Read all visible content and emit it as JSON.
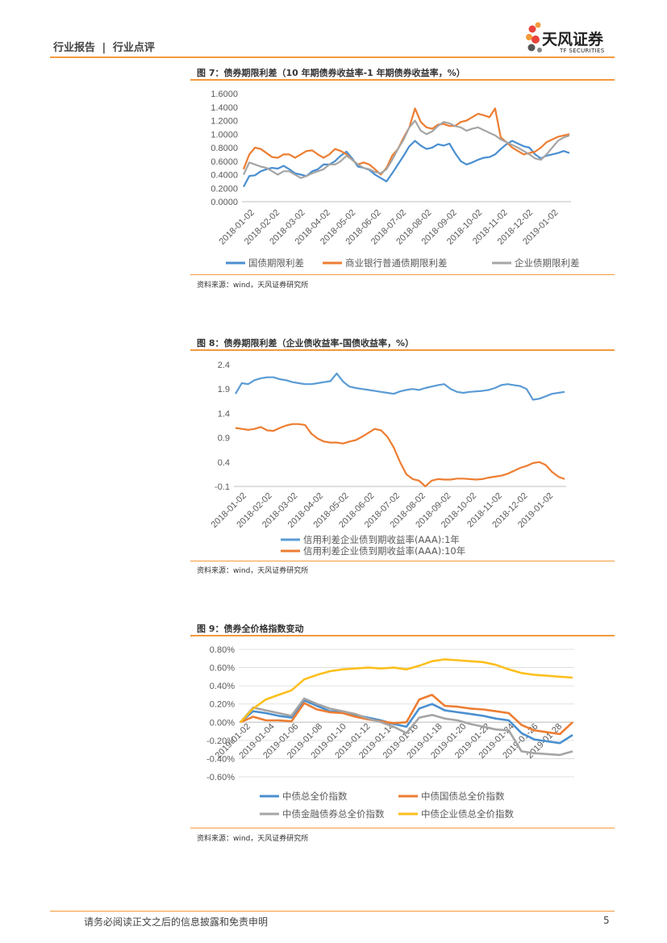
{
  "header": {
    "section": "行业报告",
    "sep": "|",
    "type": "行业点评"
  },
  "brand": {
    "cn": "天风证券",
    "en": "TF SECURITIES"
  },
  "figure7": {
    "caption": "图 7：债券期限利差（10 年期债券收益率-1 年期债券收益率，%）",
    "source": "资料来源：wind，天风证券研究所",
    "chart_data": {
      "type": "line",
      "title": "",
      "y_ticks": [
        "1.6000",
        "1.4000",
        "1.2000",
        "1.0000",
        "0.8000",
        "0.6000",
        "0.4000",
        "0.2000",
        "0.0000"
      ],
      "ylim": [
        0,
        1.6
      ],
      "x_ticks": [
        "2018-01-02",
        "2018-02-02",
        "2018-03-02",
        "2018-04-02",
        "2018-05-02",
        "2018-06-02",
        "2018-07-02",
        "2018-08-02",
        "2018-09-02",
        "2018-10-02",
        "2018-11-02",
        "2018-12-02",
        "2019-01-02"
      ],
      "series": [
        {
          "name": "国债期限利差",
          "color": "#4a8fd0",
          "values": [
            0.22,
            0.38,
            0.39,
            0.45,
            0.48,
            0.5,
            0.49,
            0.53,
            0.48,
            0.42,
            0.4,
            0.38,
            0.45,
            0.48,
            0.55,
            0.55,
            0.6,
            0.68,
            0.74,
            0.64,
            0.52,
            0.5,
            0.47,
            0.4,
            0.35,
            0.3,
            0.42,
            0.55,
            0.68,
            0.82,
            0.9,
            0.83,
            0.78,
            0.8,
            0.85,
            0.83,
            0.86,
            0.72,
            0.6,
            0.55,
            0.58,
            0.62,
            0.65,
            0.66,
            0.7,
            0.78,
            0.85,
            0.9,
            0.86,
            0.82,
            0.8,
            0.7,
            0.64,
            0.68,
            0.7,
            0.72,
            0.75,
            0.72
          ]
        },
        {
          "name": "商业银行普通债期限利差",
          "color": "#ed7d31",
          "values": [
            0.48,
            0.7,
            0.8,
            0.78,
            0.72,
            0.66,
            0.65,
            0.7,
            0.7,
            0.65,
            0.7,
            0.75,
            0.76,
            0.7,
            0.65,
            0.7,
            0.78,
            0.75,
            0.7,
            0.62,
            0.55,
            0.58,
            0.55,
            0.48,
            0.4,
            0.5,
            0.68,
            0.78,
            0.95,
            1.1,
            1.38,
            1.18,
            1.1,
            1.08,
            1.14,
            1.15,
            1.12,
            1.12,
            1.18,
            1.2,
            1.25,
            1.3,
            1.28,
            1.25,
            1.38,
            0.95,
            0.88,
            0.8,
            0.75,
            0.7,
            0.72,
            0.74,
            0.8,
            0.88,
            0.92,
            0.96,
            0.98,
            1.0
          ]
        },
        {
          "name": "企业债期限利差",
          "color": "#a5a5a5",
          "values": [
            0.4,
            0.58,
            0.55,
            0.52,
            0.5,
            0.45,
            0.4,
            0.45,
            0.45,
            0.4,
            0.35,
            0.38,
            0.42,
            0.45,
            0.48,
            0.55,
            0.55,
            0.6,
            0.68,
            0.62,
            0.55,
            0.5,
            0.48,
            0.44,
            0.42,
            0.48,
            0.62,
            0.78,
            0.92,
            1.1,
            1.2,
            1.05,
            1.0,
            1.04,
            1.12,
            1.18,
            1.16,
            1.12,
            1.1,
            1.05,
            1.08,
            1.1,
            1.06,
            1.02,
            0.98,
            0.92,
            0.88,
            0.84,
            0.8,
            0.75,
            0.7,
            0.64,
            0.62,
            0.7,
            0.8,
            0.9,
            0.95,
            0.98
          ]
        }
      ]
    }
  },
  "figure8": {
    "caption": "图 8：债券期限利差（企业债收益率-国债收益率，%）",
    "source": "资料来源：wind，天风证券研究所",
    "chart_data": {
      "type": "line",
      "y_ticks": [
        "2.4",
        "1.9",
        "1.4",
        "0.9",
        "0.4",
        "-0.1"
      ],
      "ylim": [
        -0.1,
        2.4
      ],
      "x_ticks": [
        "2018-01-02",
        "2018-02-02",
        "2018-03-02",
        "2018-04-02",
        "2018-05-02",
        "2018-06-02",
        "2018-07-02",
        "2018-08-02",
        "2018-09-02",
        "2018-10-02",
        "2018-11-02",
        "2018-12-02",
        "2019-01-02"
      ],
      "series": [
        {
          "name": "信用利差企业债到期收益率(AAA):1年",
          "color": "#5b9bd5",
          "values": [
            1.8,
            2.02,
            2.0,
            2.08,
            2.12,
            2.14,
            2.14,
            2.1,
            2.08,
            2.04,
            2.02,
            2.0,
            2.0,
            2.02,
            2.04,
            2.06,
            2.22,
            2.05,
            1.95,
            1.92,
            1.9,
            1.88,
            1.86,
            1.84,
            1.82,
            1.8,
            1.85,
            1.88,
            1.9,
            1.88,
            1.92,
            1.95,
            1.98,
            2.0,
            1.9,
            1.84,
            1.82,
            1.84,
            1.85,
            1.86,
            1.88,
            1.92,
            1.98,
            2.0,
            1.98,
            1.96,
            1.9,
            1.68,
            1.7,
            1.75,
            1.8,
            1.82,
            1.84
          ]
        },
        {
          "name": "信用利差企业债到期收益率(AAA):10年",
          "color": "#ed7d31",
          "values": [
            1.1,
            1.08,
            1.06,
            1.08,
            1.12,
            1.05,
            1.04,
            1.1,
            1.15,
            1.18,
            1.18,
            1.16,
            0.98,
            0.88,
            0.82,
            0.8,
            0.8,
            0.78,
            0.82,
            0.85,
            0.92,
            1.0,
            1.08,
            1.05,
            0.92,
            0.7,
            0.4,
            0.15,
            0.05,
            0.02,
            -0.1,
            0.02,
            0.05,
            0.04,
            0.04,
            0.06,
            0.06,
            0.05,
            0.04,
            0.05,
            0.08,
            0.1,
            0.12,
            0.16,
            0.22,
            0.28,
            0.32,
            0.38,
            0.4,
            0.34,
            0.2,
            0.1,
            0.05
          ]
        }
      ]
    }
  },
  "figure9": {
    "caption": "图 9：债券全价格指数变动",
    "source": "资料来源：wind，天风证券研究所",
    "chart_data": {
      "type": "line",
      "y_ticks": [
        "0.80%",
        "0.60%",
        "0.40%",
        "0.20%",
        "0.00%",
        "-0.20%",
        "-0.40%",
        "-0.60%"
      ],
      "ylim": [
        -0.6,
        0.8
      ],
      "x_ticks": [
        "2019-01-02",
        "2019-01-04",
        "2019-01-06",
        "2019-01-08",
        "2019-01-10",
        "2019-01-12",
        "2019-01-14",
        "2019-01-16",
        "2019-01-18",
        "2019-01-20",
        "2019-01-22",
        "2019-01-24",
        "2019-01-26",
        "2019-01-28"
      ],
      "series": [
        {
          "name": "中债总全价指数",
          "color": "#4a8fd0",
          "values": [
            0.0,
            0.12,
            0.1,
            0.07,
            0.05,
            0.24,
            0.18,
            0.12,
            0.11,
            0.08,
            0.05,
            0.02,
            -0.02,
            -0.05,
            0.15,
            0.2,
            0.13,
            0.11,
            0.09,
            0.07,
            0.04,
            0.02,
            -0.12,
            -0.19,
            -0.21,
            -0.23,
            -0.14
          ]
        },
        {
          "name": "中债国债总全价指数",
          "color": "#ed7d31",
          "values": [
            0.0,
            0.06,
            0.02,
            0.02,
            0.01,
            0.21,
            0.14,
            0.11,
            0.1,
            0.06,
            0.03,
            0.01,
            -0.01,
            0.0,
            0.25,
            0.3,
            0.18,
            0.17,
            0.15,
            0.14,
            0.12,
            0.1,
            -0.03,
            -0.09,
            -0.11,
            -0.13,
            0.0
          ]
        },
        {
          "name": "中债金融债券总全价指数",
          "color": "#a5a5a5",
          "values": [
            0.0,
            0.16,
            0.13,
            0.1,
            0.07,
            0.26,
            0.2,
            0.15,
            0.12,
            0.09,
            0.04,
            0.0,
            -0.05,
            -0.12,
            0.05,
            0.08,
            0.04,
            0.02,
            -0.02,
            -0.05,
            -0.08,
            -0.09,
            -0.32,
            -0.34,
            -0.35,
            -0.36,
            -0.32
          ]
        },
        {
          "name": "中债企业债总全价指数",
          "color": "#fcbf1c",
          "values": [
            0.0,
            0.15,
            0.25,
            0.3,
            0.35,
            0.47,
            0.52,
            0.56,
            0.58,
            0.59,
            0.6,
            0.59,
            0.6,
            0.58,
            0.62,
            0.67,
            0.69,
            0.68,
            0.67,
            0.66,
            0.63,
            0.58,
            0.54,
            0.52,
            0.51,
            0.5,
            0.49
          ]
        }
      ]
    }
  },
  "footer": {
    "disclaimer": "请务必阅读正文之后的信息披露和免责申明",
    "page": "5"
  }
}
